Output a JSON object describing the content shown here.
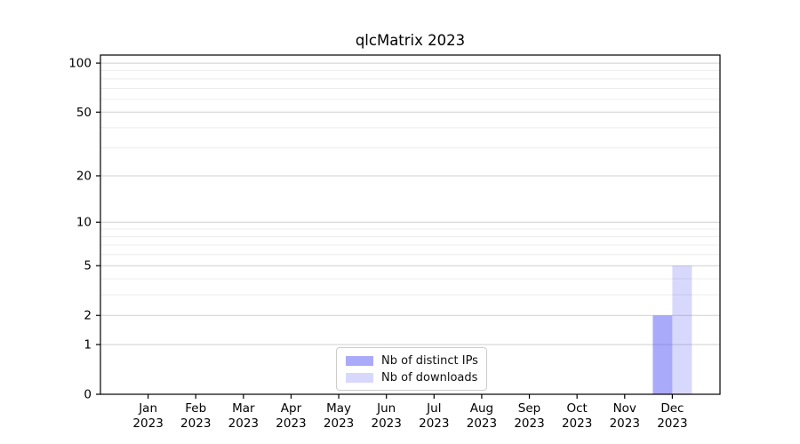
{
  "chart_data": {
    "type": "bar",
    "title": "qlcMatrix 2023",
    "categories": [
      "Jan 2023",
      "Feb 2023",
      "Mar 2023",
      "Apr 2023",
      "May 2023",
      "Jun 2023",
      "Jul 2023",
      "Aug 2023",
      "Sep 2023",
      "Oct 2023",
      "Nov 2023",
      "Dec 2023"
    ],
    "series": [
      {
        "name": "Nb of distinct IPs",
        "color": "#aaaafa",
        "fill": "rgba(85,85,245,0.5)",
        "values": [
          0,
          0,
          0,
          0,
          0,
          0,
          0,
          0,
          0,
          0,
          0,
          2
        ]
      },
      {
        "name": "Nb of downloads",
        "color": "#d8d8fa",
        "fill": "rgba(85,85,245,0.23)",
        "values": [
          0,
          0,
          0,
          0,
          0,
          0,
          0,
          0,
          0,
          0,
          0,
          5
        ]
      }
    ],
    "yscale": "log10(value+1)",
    "yticks": [
      0,
      1,
      2,
      5,
      10,
      20,
      50,
      100
    ],
    "yminorticks": [
      3,
      4,
      6,
      7,
      8,
      9,
      30,
      40,
      60,
      70,
      80,
      90
    ],
    "ylim": [
      0,
      112
    ],
    "xlabel": "",
    "ylabel": "",
    "grid": "horizontal",
    "legend_position": "bottom-center",
    "colors": {
      "major_grid": "#cfcfcf",
      "minor_grid": "#ececec",
      "axis": "#000000",
      "text": "#000000"
    }
  }
}
